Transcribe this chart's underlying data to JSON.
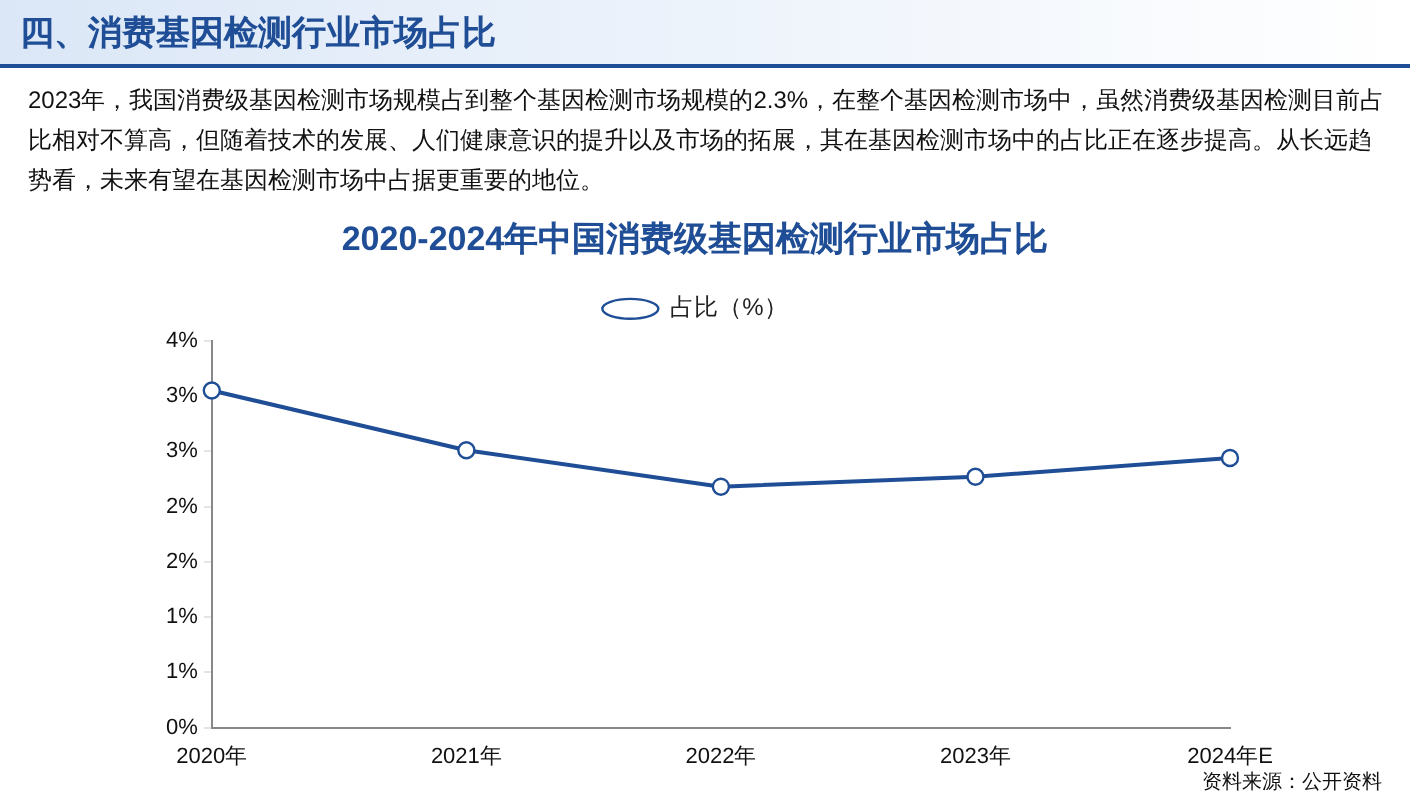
{
  "chart_data": {
    "type": "line",
    "title": "2020-2024年中国消费级基因检测行业市场占比",
    "annotations": [
      "四、消费基因检测行业市场占比",
      "2023年，我国消费级基因检测市场规模占到整个基因检测市场规模的2.3%，在整个基因检测市场中，虽然消费级基因检测目前占比相对不算高，但随着技术的发展、人们健康意识的提升以及市场的拓展，其在基因检测市场中的占比正在逐步提高。从长远趋势看，未来有望在基因检测市场中占据更重要的地位。",
      "资料来源：公开资料"
    ],
    "categories": [
      "2020年",
      "2021年",
      "2022年",
      "2023年",
      "2024年E"
    ],
    "series": [
      {
        "name": "占比（%）",
        "color": "#1f4e96",
        "values": [
          3.05,
          2.51,
          2.18,
          2.27,
          2.44
        ]
      }
    ],
    "ylim": [
      0,
      3.5
    ],
    "yticks": [
      {
        "value": 0,
        "label": "0%"
      },
      {
        "value": 0.5,
        "label": "1%"
      },
      {
        "value": 1,
        "label": "1%"
      },
      {
        "value": 1.5,
        "label": "2%"
      },
      {
        "value": 2,
        "label": "2%"
      },
      {
        "value": 2.5,
        "label": "3%"
      },
      {
        "value": 3,
        "label": "3%"
      },
      {
        "value": 3.5,
        "label": "4%"
      }
    ],
    "marker": "circle",
    "line_style": "solid",
    "grid": false,
    "legend": "top"
  }
}
